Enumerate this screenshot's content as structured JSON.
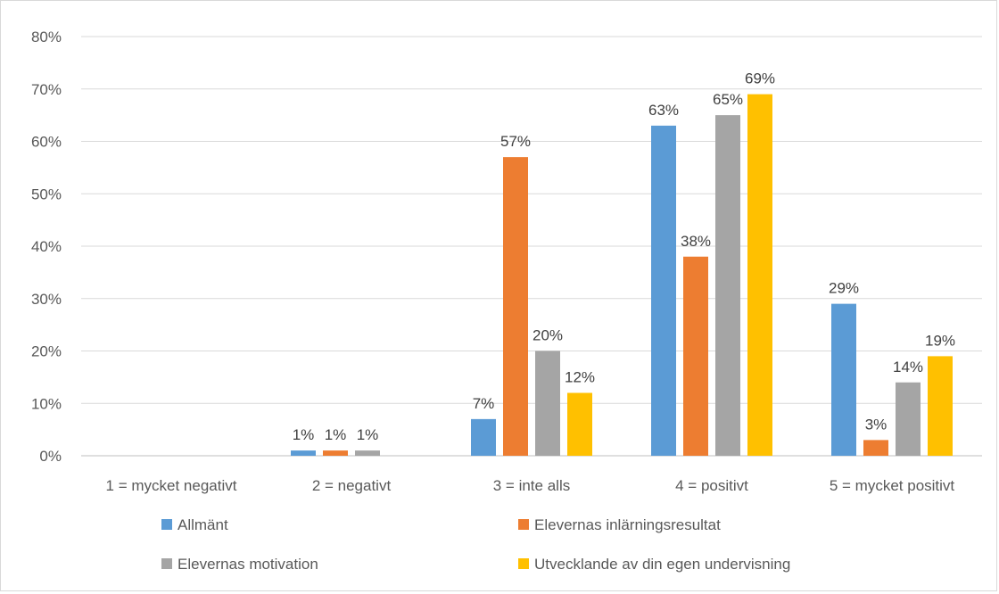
{
  "chart_data": {
    "type": "bar",
    "title": "",
    "xlabel": "",
    "ylabel": "",
    "ylim": [
      0,
      80
    ],
    "y_ticks": [
      "0%",
      "10%",
      "20%",
      "30%",
      "40%",
      "50%",
      "60%",
      "70%",
      "80%"
    ],
    "grid": true,
    "legend_position": "bottom",
    "categories": [
      "1 = mycket negativt",
      "2 = negativt",
      "3 = inte alls",
      "4 = positivt",
      "5 = mycket positivt"
    ],
    "series": [
      {
        "name": "Allmänt",
        "color": "#5b9bd5",
        "values": [
          0,
          1,
          7,
          63,
          29
        ],
        "labels": [
          "",
          "1%",
          "7%",
          "63%",
          "29%"
        ]
      },
      {
        "name": "Elevernas inlärningsresultat",
        "color": "#ed7d31",
        "values": [
          0,
          1,
          57,
          38,
          3
        ],
        "labels": [
          "",
          "1%",
          "57%",
          "38%",
          "3%"
        ]
      },
      {
        "name": "Elevernas motivation",
        "color": "#a5a5a5",
        "values": [
          0,
          1,
          20,
          65,
          14
        ],
        "labels": [
          "",
          "1%",
          "20%",
          "65%",
          "14%"
        ]
      },
      {
        "name": "Utvecklande av din egen undervisning",
        "color": "#ffc000",
        "values": [
          0,
          0,
          12,
          69,
          19
        ],
        "labels": [
          "",
          "",
          "12%",
          "69%",
          "19%"
        ]
      }
    ],
    "colors": {
      "grid": "#d9d9d9",
      "axis": "#bfbfbf",
      "tick_text": "#595959",
      "data_label_text": "#404040"
    }
  }
}
